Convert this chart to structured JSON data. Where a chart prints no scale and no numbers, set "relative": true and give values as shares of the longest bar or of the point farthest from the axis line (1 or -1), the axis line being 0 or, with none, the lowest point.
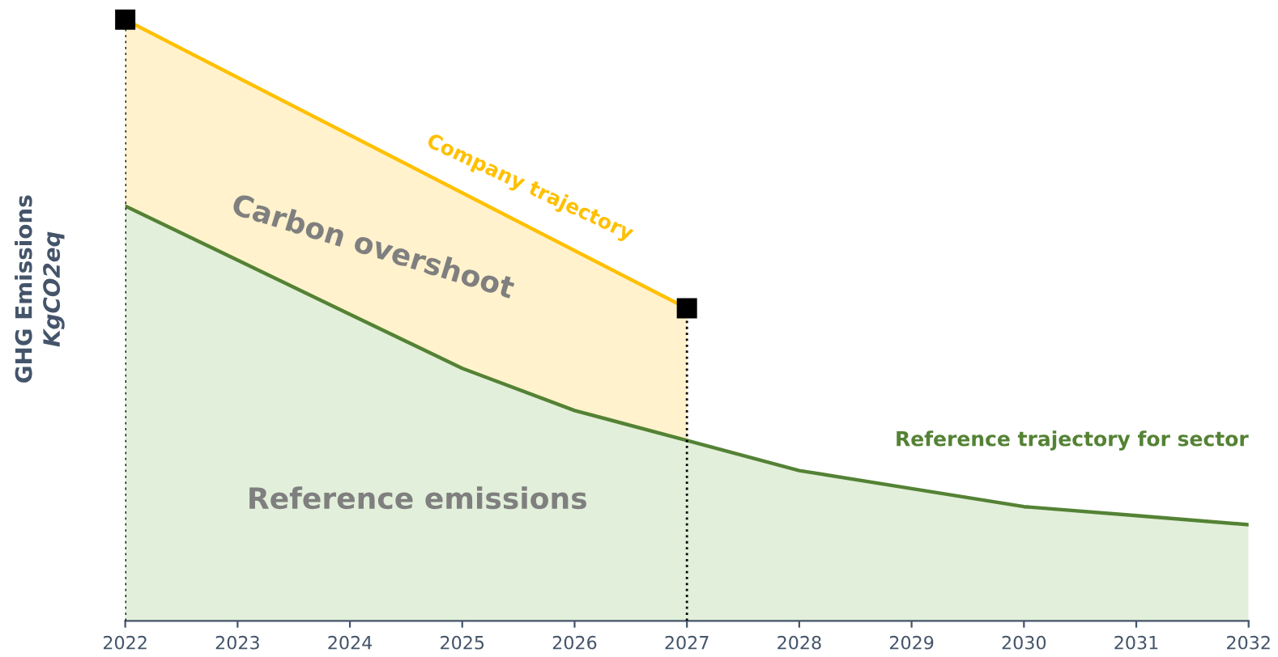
{
  "chart_data": {
    "type": "area",
    "relative": true,
    "ylabel": "GHG Emissions\nKgCO2eq",
    "x": [
      2022,
      2023,
      2024,
      2025,
      2026,
      2027,
      2028,
      2029,
      2030,
      2031,
      2032
    ],
    "xlim": [
      2022,
      2032
    ],
    "xticks": [
      2022,
      2023,
      2024,
      2025,
      2026,
      2027,
      2028,
      2029,
      2030,
      2031,
      2032
    ],
    "tick_labels": "x",
    "grid": false,
    "legend": false,
    "series": [
      {
        "name": "Company trajectory",
        "color": "#ffc000",
        "marker": "square",
        "x": [
          2022,
          2027
        ],
        "values": [
          1.0,
          0.52
        ]
      },
      {
        "name": "Reference trajectory for sector",
        "color": "#548235",
        "marker": "none",
        "values": [
          0.69,
          0.6,
          0.51,
          0.42,
          0.35,
          0.3,
          0.25,
          0.22,
          0.19,
          0.175,
          0.16
        ]
      }
    ],
    "ref_lines": [
      {
        "axis": "x",
        "value": 2022,
        "color": "#000000",
        "line_style": "dotted"
      },
      {
        "axis": "x",
        "value": 2027,
        "color": "#000000",
        "line_style": "dotted"
      }
    ],
    "annotations": [
      "Carbon overshoot",
      "Reference emissions"
    ]
  }
}
